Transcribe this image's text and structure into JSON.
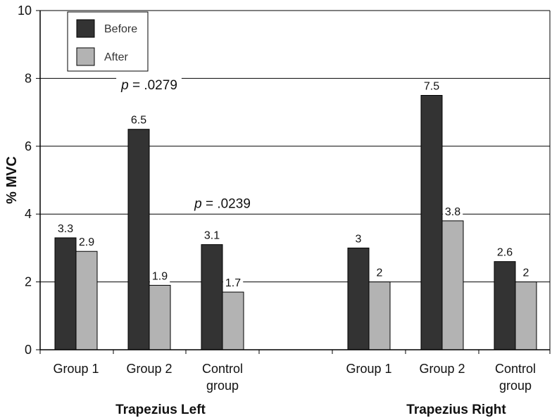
{
  "chart_data": {
    "type": "bar",
    "title": "",
    "xlabel": "",
    "ylabel": "% MVC",
    "ylim": [
      0,
      10
    ],
    "yticks": [
      0,
      2,
      4,
      6,
      8,
      10
    ],
    "grid": true,
    "legend_position": "top-left",
    "groups": [
      "Trapezius Left",
      "Trapezius Right"
    ],
    "categories": [
      {
        "label": "Group 1",
        "lines": [
          "Group 1"
        ],
        "group": "Trapezius Left"
      },
      {
        "label": "Group 2",
        "lines": [
          "Group 2"
        ],
        "group": "Trapezius Left"
      },
      {
        "label": "Control group",
        "lines": [
          "Control",
          "group"
        ],
        "group": "Trapezius Left"
      },
      {
        "label": "Group 1",
        "lines": [
          "Group 1"
        ],
        "group": "Trapezius Right"
      },
      {
        "label": "Group 2",
        "lines": [
          "Group 2"
        ],
        "group": "Trapezius Right"
      },
      {
        "label": "Control group",
        "lines": [
          "Control",
          "group"
        ],
        "group": "Trapezius Right"
      }
    ],
    "series": [
      {
        "name": "Before",
        "color": "#333333",
        "values": [
          3.3,
          6.5,
          3.1,
          3,
          7.5,
          2.6
        ],
        "labels": [
          "3.3",
          "6.5",
          "3.1",
          "3",
          "7.5",
          "2.6"
        ]
      },
      {
        "name": "After",
        "color": "#b3b3b3",
        "values": [
          2.9,
          1.9,
          1.7,
          2,
          3.8,
          2
        ],
        "labels": [
          "2.9",
          "1.9",
          "1.7",
          "2",
          "3.8",
          "2"
        ]
      }
    ],
    "annotations": [
      {
        "italic": "p",
        "rest": " = .0279",
        "near": "Trapezius Left Group 2",
        "at_value": 7.8
      },
      {
        "italic": "p",
        "rest": " = .0239",
        "near": "Trapezius Left Control group",
        "at_value": 4.3
      }
    ]
  }
}
